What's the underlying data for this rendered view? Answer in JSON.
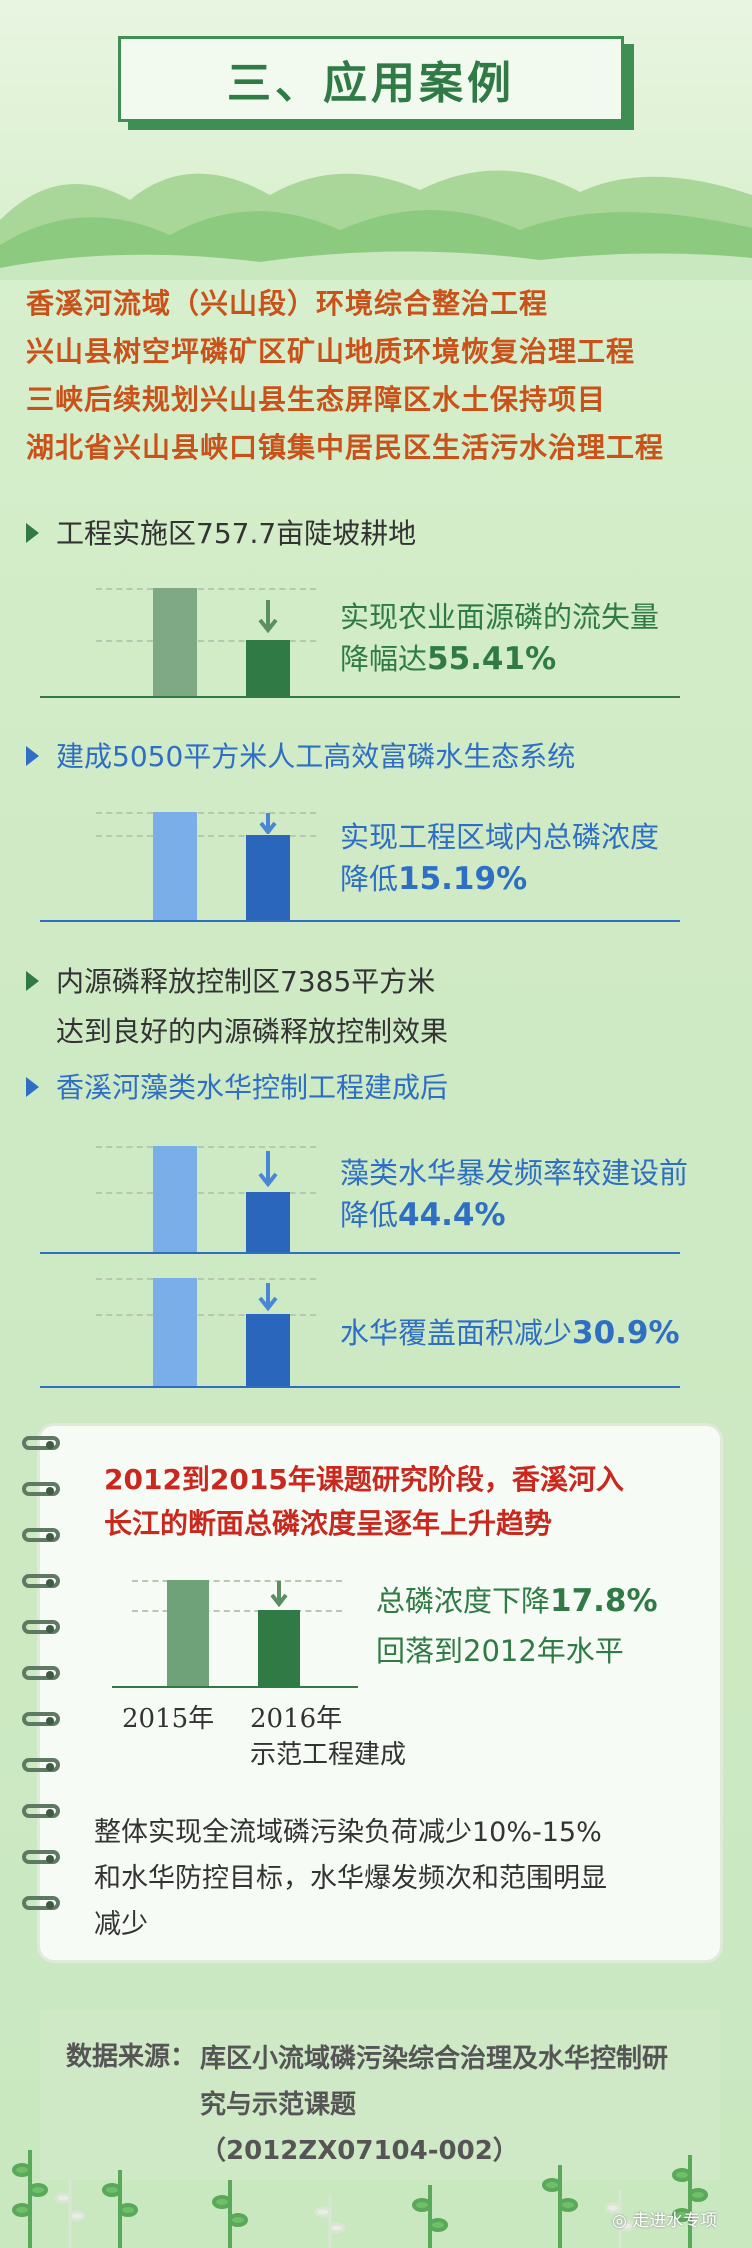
{
  "title": "三、应用案例",
  "projects": [
    "香溪河流域（兴山段）环境综合整治工程",
    "兴山县树空坪磷矿区矿山地质环境恢复治理工程",
    "三峡后续规划兴山县生态屏障区水土保持项目",
    "湖北省兴山县峡口镇集中居民区生活污水治理工程"
  ],
  "sections": {
    "s1": {
      "heading": "工程实施区757.7亩陡坡耕地",
      "desc1": "实现农业面源磷的流失量",
      "desc2_prefix": "降幅达",
      "value": "55.41%"
    },
    "s2": {
      "heading": "建成5050平方米人工高效富磷水生态系统",
      "desc1": "实现工程区域内总磷浓度",
      "desc2_prefix": "降低",
      "value": "15.19%"
    },
    "s3": {
      "heading_line1": "内源磷释放控制区7385平方米",
      "heading_line2": "达到良好的内源磷释放控制效果"
    },
    "s4": {
      "heading": "香溪河藻类水华控制工程建成后",
      "chart_a": {
        "desc1": "藻类水华暴发频率较建设前",
        "desc2_prefix": "降低",
        "value": "44.4%"
      },
      "chart_b": {
        "desc_prefix": "水华覆盖面积减少",
        "value": "30.9%"
      }
    }
  },
  "card": {
    "title_line1": "2012到2015年课题研究阶段，香溪河入",
    "title_line2": "长江的断面总磷浓度呈逐年上升趋势",
    "chart_label_a": "2015年",
    "chart_label_b_line1": "2016年",
    "chart_label_b_line2": "示范工程建成",
    "desc1_prefix": "总磷浓度下降",
    "desc1_value": "17.8%",
    "desc2": "回落到2012年水平",
    "summary_line1": "整体实现全流域磷污染负荷减少10%-15%",
    "summary_line2": "和水华防控目标，水华爆发频次和范围明显",
    "summary_line3": "减少"
  },
  "source": {
    "label": "数据来源：",
    "line1": "库区小流域磷污染综合治理及水华控制研",
    "line2": "究与示范课题",
    "line3": "（2012ZX07104-002）"
  },
  "watermark": "走进水专项",
  "colors": {
    "green_dark": "#2f7a45",
    "orange": "#c9521a",
    "blue": "#2e6fc4",
    "red": "#c8281e"
  }
}
